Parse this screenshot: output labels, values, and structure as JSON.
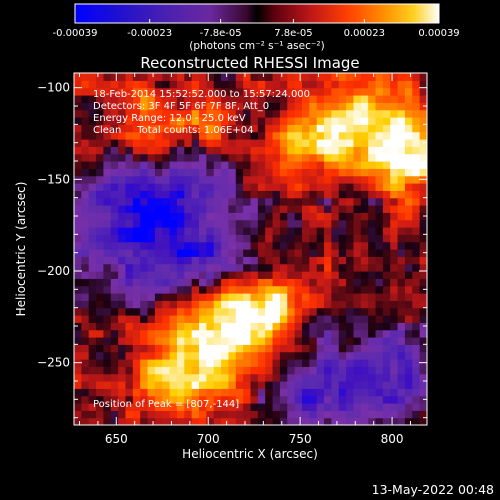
{
  "colorbar": {
    "ticks": [
      "-0.00039",
      "-0.00023",
      "-7.8e-05",
      "7.8e-05",
      "0.00023",
      "0.00039"
    ],
    "units": "(photons cm⁻² s⁻¹ asec⁻²)"
  },
  "title": "Reconstructed RHESSI Image",
  "annotations": {
    "time_range": "18-Feb-2014 15:52:52.000 to 15:57:24.000",
    "detectors": "Detectors: 3F 4F 5F 6F 7F 8F, Att_0",
    "energy": "Energy Range: 12.0 - 25.0 keV",
    "clean": "Clean     Total counts: 1.06E+04",
    "peak": "Position of Peak = [807,-144]"
  },
  "footer_timestamp": "13-May-2022 00:48",
  "colors": {
    "background": "#000000",
    "text": "#ffffff"
  },
  "chart_data": {
    "type": "heatmap",
    "title": "Reconstructed RHESSI Image",
    "xlabel": "Heliocentric X (arcsec)",
    "ylabel": "Heliocentric Y (arcsec)",
    "xlim": [
      627,
      819
    ],
    "ylim": [
      -284,
      -92
    ],
    "x_ticks": [
      650,
      700,
      750,
      800
    ],
    "y_ticks": [
      -100,
      -150,
      -200,
      -250
    ],
    "colorscale_range": [
      -0.00039,
      0.00039
    ],
    "colorbar_ticks": [
      -0.00039,
      -0.00023,
      -7.8e-05,
      7.8e-05,
      0.00023,
      0.00039
    ],
    "colormap": [
      "#0000ff",
      "#4010c0",
      "#5a2ab0",
      "#7a30a8",
      "#1a0010",
      "#c01818",
      "#ff3000",
      "#ff8000",
      "#ffd000",
      "#ffffff"
    ],
    "grid": false,
    "peak_position": [
      807,
      -144
    ],
    "bright_regions": [
      {
        "x": 785,
        "y": -120,
        "sx": 22,
        "sy": 18,
        "amp": 1.0
      },
      {
        "x": 810,
        "y": -140,
        "sx": 12,
        "sy": 12,
        "amp": 1.0
      },
      {
        "x": 750,
        "y": -130,
        "sx": 12,
        "sy": 10,
        "amp": 0.7
      },
      {
        "x": 700,
        "y": -240,
        "sx": 22,
        "sy": 20,
        "amp": 0.9
      },
      {
        "x": 720,
        "y": -225,
        "sx": 16,
        "sy": 14,
        "amp": 0.8
      },
      {
        "x": 680,
        "y": -260,
        "sx": 14,
        "sy": 12,
        "amp": 0.6
      },
      {
        "x": 740,
        "y": -215,
        "sx": 10,
        "sy": 10,
        "amp": 0.55
      },
      {
        "x": 665,
        "y": -115,
        "sx": 14,
        "sy": 12,
        "amp": 0.55
      },
      {
        "x": 700,
        "y": -120,
        "sx": 10,
        "sy": 10,
        "amp": 0.5
      }
    ],
    "dim_regions": [
      {
        "x": 680,
        "y": -190,
        "sx": 28,
        "sy": 20,
        "amp": 0.9
      },
      {
        "x": 660,
        "y": -160,
        "sx": 20,
        "sy": 16,
        "amp": 0.7
      },
      {
        "x": 765,
        "y": -265,
        "sx": 24,
        "sy": 16,
        "amp": 0.8
      },
      {
        "x": 800,
        "y": -250,
        "sx": 16,
        "sy": 16,
        "amp": 0.6
      },
      {
        "x": 700,
        "y": -155,
        "sx": 14,
        "sy": 12,
        "amp": 0.5
      }
    ]
  }
}
